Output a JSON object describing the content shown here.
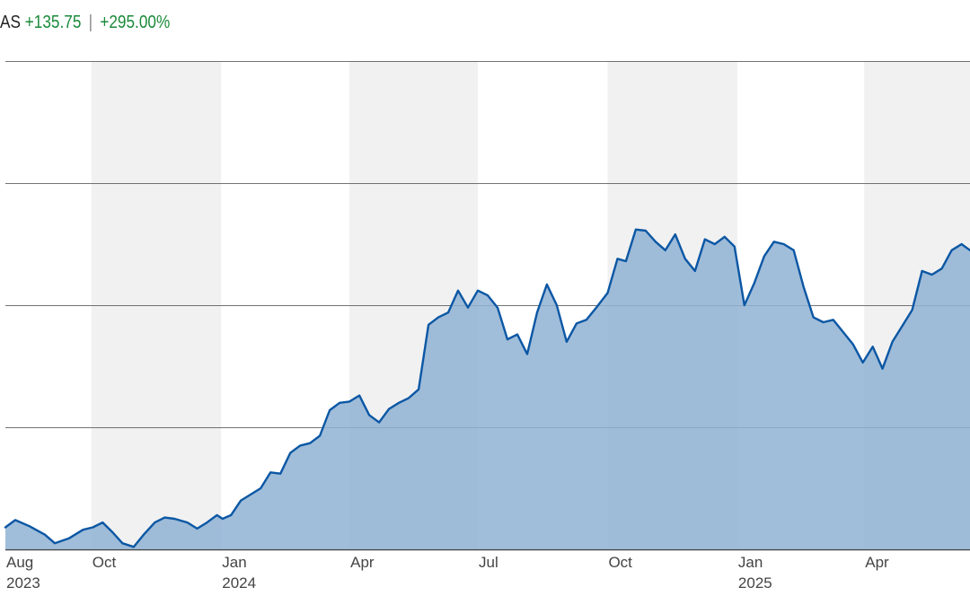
{
  "header": {
    "ticker": "AS",
    "change": "+135.75",
    "separator": "|",
    "change_pct": "+295.00%"
  },
  "colors": {
    "line": "#0b57a4",
    "fill": "#8fb2d3",
    "band": "#f1f1f1",
    "grid": "#444444",
    "positive": "#1a8a3a"
  },
  "chart_data": {
    "type": "area",
    "title": "",
    "xlabel": "",
    "ylabel": "",
    "y_tick_labels_shown": false,
    "shaded_quarter_bands": true,
    "x_tick_labels": [
      {
        "month": "Aug",
        "year": "2023",
        "date": "2023-08-01"
      },
      {
        "month": "Oct",
        "year": "",
        "date": "2023-10-01"
      },
      {
        "month": "Jan",
        "year": "2024",
        "date": "2024-01-01"
      },
      {
        "month": "Apr",
        "year": "",
        "date": "2024-04-01"
      },
      {
        "month": "Jul",
        "year": "",
        "date": "2024-07-01"
      },
      {
        "month": "Oct",
        "year": "",
        "date": "2024-10-01"
      },
      {
        "month": "Jan",
        "year": "2025",
        "date": "2025-01-01"
      },
      {
        "month": "Apr",
        "year": "",
        "date": "2025-04-01"
      }
    ],
    "x_range": [
      "2023-08-01",
      "2025-06-15"
    ],
    "y_range": [
      0,
      400
    ],
    "gridlines_y": [
      0,
      100,
      200,
      300,
      400
    ],
    "series": [
      {
        "values": [
          [
            "2023-08-01",
            18
          ],
          [
            "2023-08-08",
            24
          ],
          [
            "2023-08-18",
            19
          ],
          [
            "2023-08-29",
            12
          ],
          [
            "2023-09-05",
            5
          ],
          [
            "2023-09-15",
            9
          ],
          [
            "2023-09-25",
            16
          ],
          [
            "2023-10-02",
            18
          ],
          [
            "2023-10-09",
            22
          ],
          [
            "2023-10-16",
            14
          ],
          [
            "2023-10-23",
            5
          ],
          [
            "2023-10-31",
            2
          ],
          [
            "2023-11-07",
            12
          ],
          [
            "2023-11-15",
            22
          ],
          [
            "2023-11-22",
            26
          ],
          [
            "2023-11-29",
            25
          ],
          [
            "2023-12-08",
            22
          ],
          [
            "2023-12-15",
            17
          ],
          [
            "2023-12-22",
            22
          ],
          [
            "2023-12-29",
            28
          ],
          [
            "2024-01-02",
            25
          ],
          [
            "2024-01-08",
            28
          ],
          [
            "2024-01-15",
            40
          ],
          [
            "2024-01-29",
            50
          ],
          [
            "2024-02-05",
            63
          ],
          [
            "2024-02-12",
            62
          ],
          [
            "2024-02-19",
            79
          ],
          [
            "2024-02-26",
            85
          ],
          [
            "2024-03-04",
            87
          ],
          [
            "2024-03-11",
            93
          ],
          [
            "2024-03-18",
            114
          ],
          [
            "2024-03-25",
            120
          ],
          [
            "2024-04-01",
            121
          ],
          [
            "2024-04-08",
            126
          ],
          [
            "2024-04-15",
            110
          ],
          [
            "2024-04-22",
            104
          ],
          [
            "2024-04-29",
            115
          ],
          [
            "2024-05-06",
            120
          ],
          [
            "2024-05-13",
            124
          ],
          [
            "2024-05-20",
            131
          ],
          [
            "2024-05-27",
            184
          ],
          [
            "2024-06-03",
            190
          ],
          [
            "2024-06-10",
            194
          ],
          [
            "2024-06-17",
            212
          ],
          [
            "2024-06-24",
            198
          ],
          [
            "2024-07-01",
            212
          ],
          [
            "2024-07-08",
            208
          ],
          [
            "2024-07-15",
            198
          ],
          [
            "2024-07-22",
            172
          ],
          [
            "2024-07-29",
            176
          ],
          [
            "2024-08-05",
            160
          ],
          [
            "2024-08-12",
            194
          ],
          [
            "2024-08-19",
            217
          ],
          [
            "2024-08-26",
            200
          ],
          [
            "2024-09-02",
            170
          ],
          [
            "2024-09-09",
            185
          ],
          [
            "2024-09-16",
            188
          ],
          [
            "2024-09-23",
            198
          ],
          [
            "2024-10-01",
            210
          ],
          [
            "2024-10-08",
            238
          ],
          [
            "2024-10-14",
            236
          ],
          [
            "2024-10-21",
            262
          ],
          [
            "2024-10-28",
            261
          ],
          [
            "2024-11-04",
            252
          ],
          [
            "2024-11-11",
            245
          ],
          [
            "2024-11-18",
            258
          ],
          [
            "2024-11-25",
            238
          ],
          [
            "2024-12-02",
            228
          ],
          [
            "2024-12-09",
            254
          ],
          [
            "2024-12-16",
            250
          ],
          [
            "2024-12-23",
            256
          ],
          [
            "2024-12-30",
            248
          ],
          [
            "2025-01-06",
            200
          ],
          [
            "2025-01-13",
            218
          ],
          [
            "2025-01-20",
            240
          ],
          [
            "2025-01-27",
            252
          ],
          [
            "2025-02-03",
            250
          ],
          [
            "2025-02-10",
            245
          ],
          [
            "2025-02-17",
            215
          ],
          [
            "2025-02-24",
            190
          ],
          [
            "2025-03-03",
            186
          ],
          [
            "2025-03-10",
            188
          ],
          [
            "2025-03-17",
            178
          ],
          [
            "2025-03-24",
            168
          ],
          [
            "2025-03-31",
            153
          ],
          [
            "2025-04-07",
            166
          ],
          [
            "2025-04-14",
            148
          ],
          [
            "2025-04-21",
            170
          ],
          [
            "2025-04-28",
            183
          ],
          [
            "2025-05-05",
            196
          ],
          [
            "2025-05-12",
            228
          ],
          [
            "2025-05-19",
            225
          ],
          [
            "2025-05-26",
            230
          ],
          [
            "2025-06-02",
            245
          ],
          [
            "2025-06-09",
            250
          ],
          [
            "2025-06-15",
            245
          ]
        ]
      }
    ]
  }
}
